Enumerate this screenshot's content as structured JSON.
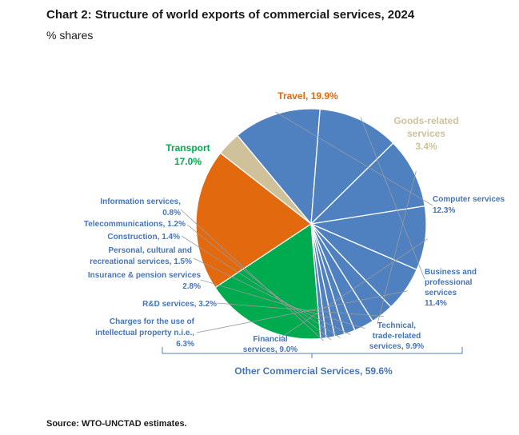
{
  "chart_title": "Chart 2: Structure of world exports of commercial services, 2024",
  "chart_subtitle": "% shares",
  "source": "Source: WTO-UNCTAD estimates.",
  "colors": {
    "travel": "#E2690E",
    "transport": "#00AA4F",
    "goods": "#CFC29B",
    "ocs": "#4F81C0",
    "ocs_label": "#4675B5"
  },
  "chart_data": {
    "type": "pie",
    "title": "Chart 2: Structure of world exports of commercial services, 2024",
    "subtitle": "% shares",
    "group_label": "Other Commercial Services, 59.6%",
    "slices": [
      {
        "key": "goods",
        "lines": [
          "Goods-related",
          "services",
          "3.4%"
        ],
        "value": 3.4,
        "color": "#CFC29B"
      },
      {
        "key": "computer",
        "lines": [
          "Computer services",
          "12.3%"
        ],
        "value": 12.3,
        "color": "#4F81C0"
      },
      {
        "key": "business",
        "lines": [
          "Business and",
          "professional",
          "services",
          "11.4%"
        ],
        "value": 11.4,
        "color": "#4F81C0"
      },
      {
        "key": "technical",
        "lines": [
          "Technical,",
          "trade-related",
          "services, 9.9%"
        ],
        "value": 9.9,
        "color": "#4F81C0"
      },
      {
        "key": "financial",
        "lines": [
          "Financial",
          "services, 9.0%"
        ],
        "value": 9.0,
        "color": "#4F81C0"
      },
      {
        "key": "ip",
        "lines": [
          "Charges for the use of",
          "intellectual property n.i.e.,",
          "6.3%"
        ],
        "value": 6.3,
        "color": "#4F81C0"
      },
      {
        "key": "rd",
        "lines": [
          "R&D services, 3.2%"
        ],
        "value": 3.2,
        "color": "#4F81C0"
      },
      {
        "key": "insurance",
        "lines": [
          "Insurance & pension services",
          "2.8%"
        ],
        "value": 2.8,
        "color": "#4F81C0"
      },
      {
        "key": "personal",
        "lines": [
          "Personal, cultural and",
          "recreational services, 1.5%"
        ],
        "value": 1.5,
        "color": "#4F81C0"
      },
      {
        "key": "construction",
        "lines": [
          "Construction, 1.4%"
        ],
        "value": 1.4,
        "color": "#4F81C0"
      },
      {
        "key": "telecom",
        "lines": [
          "Telecommunications, 1.2%"
        ],
        "value": 1.2,
        "color": "#4F81C0"
      },
      {
        "key": "information",
        "lines": [
          "Information services,",
          "0.8%"
        ],
        "value": 0.8,
        "color": "#4F81C0"
      },
      {
        "key": "transport",
        "lines": [
          "Transport",
          "17.0%"
        ],
        "value": 17.0,
        "color": "#00AA4F"
      },
      {
        "key": "travel",
        "lines": [
          "Travel, 19.9%"
        ],
        "value": 19.9,
        "color": "#E2690E"
      }
    ]
  }
}
